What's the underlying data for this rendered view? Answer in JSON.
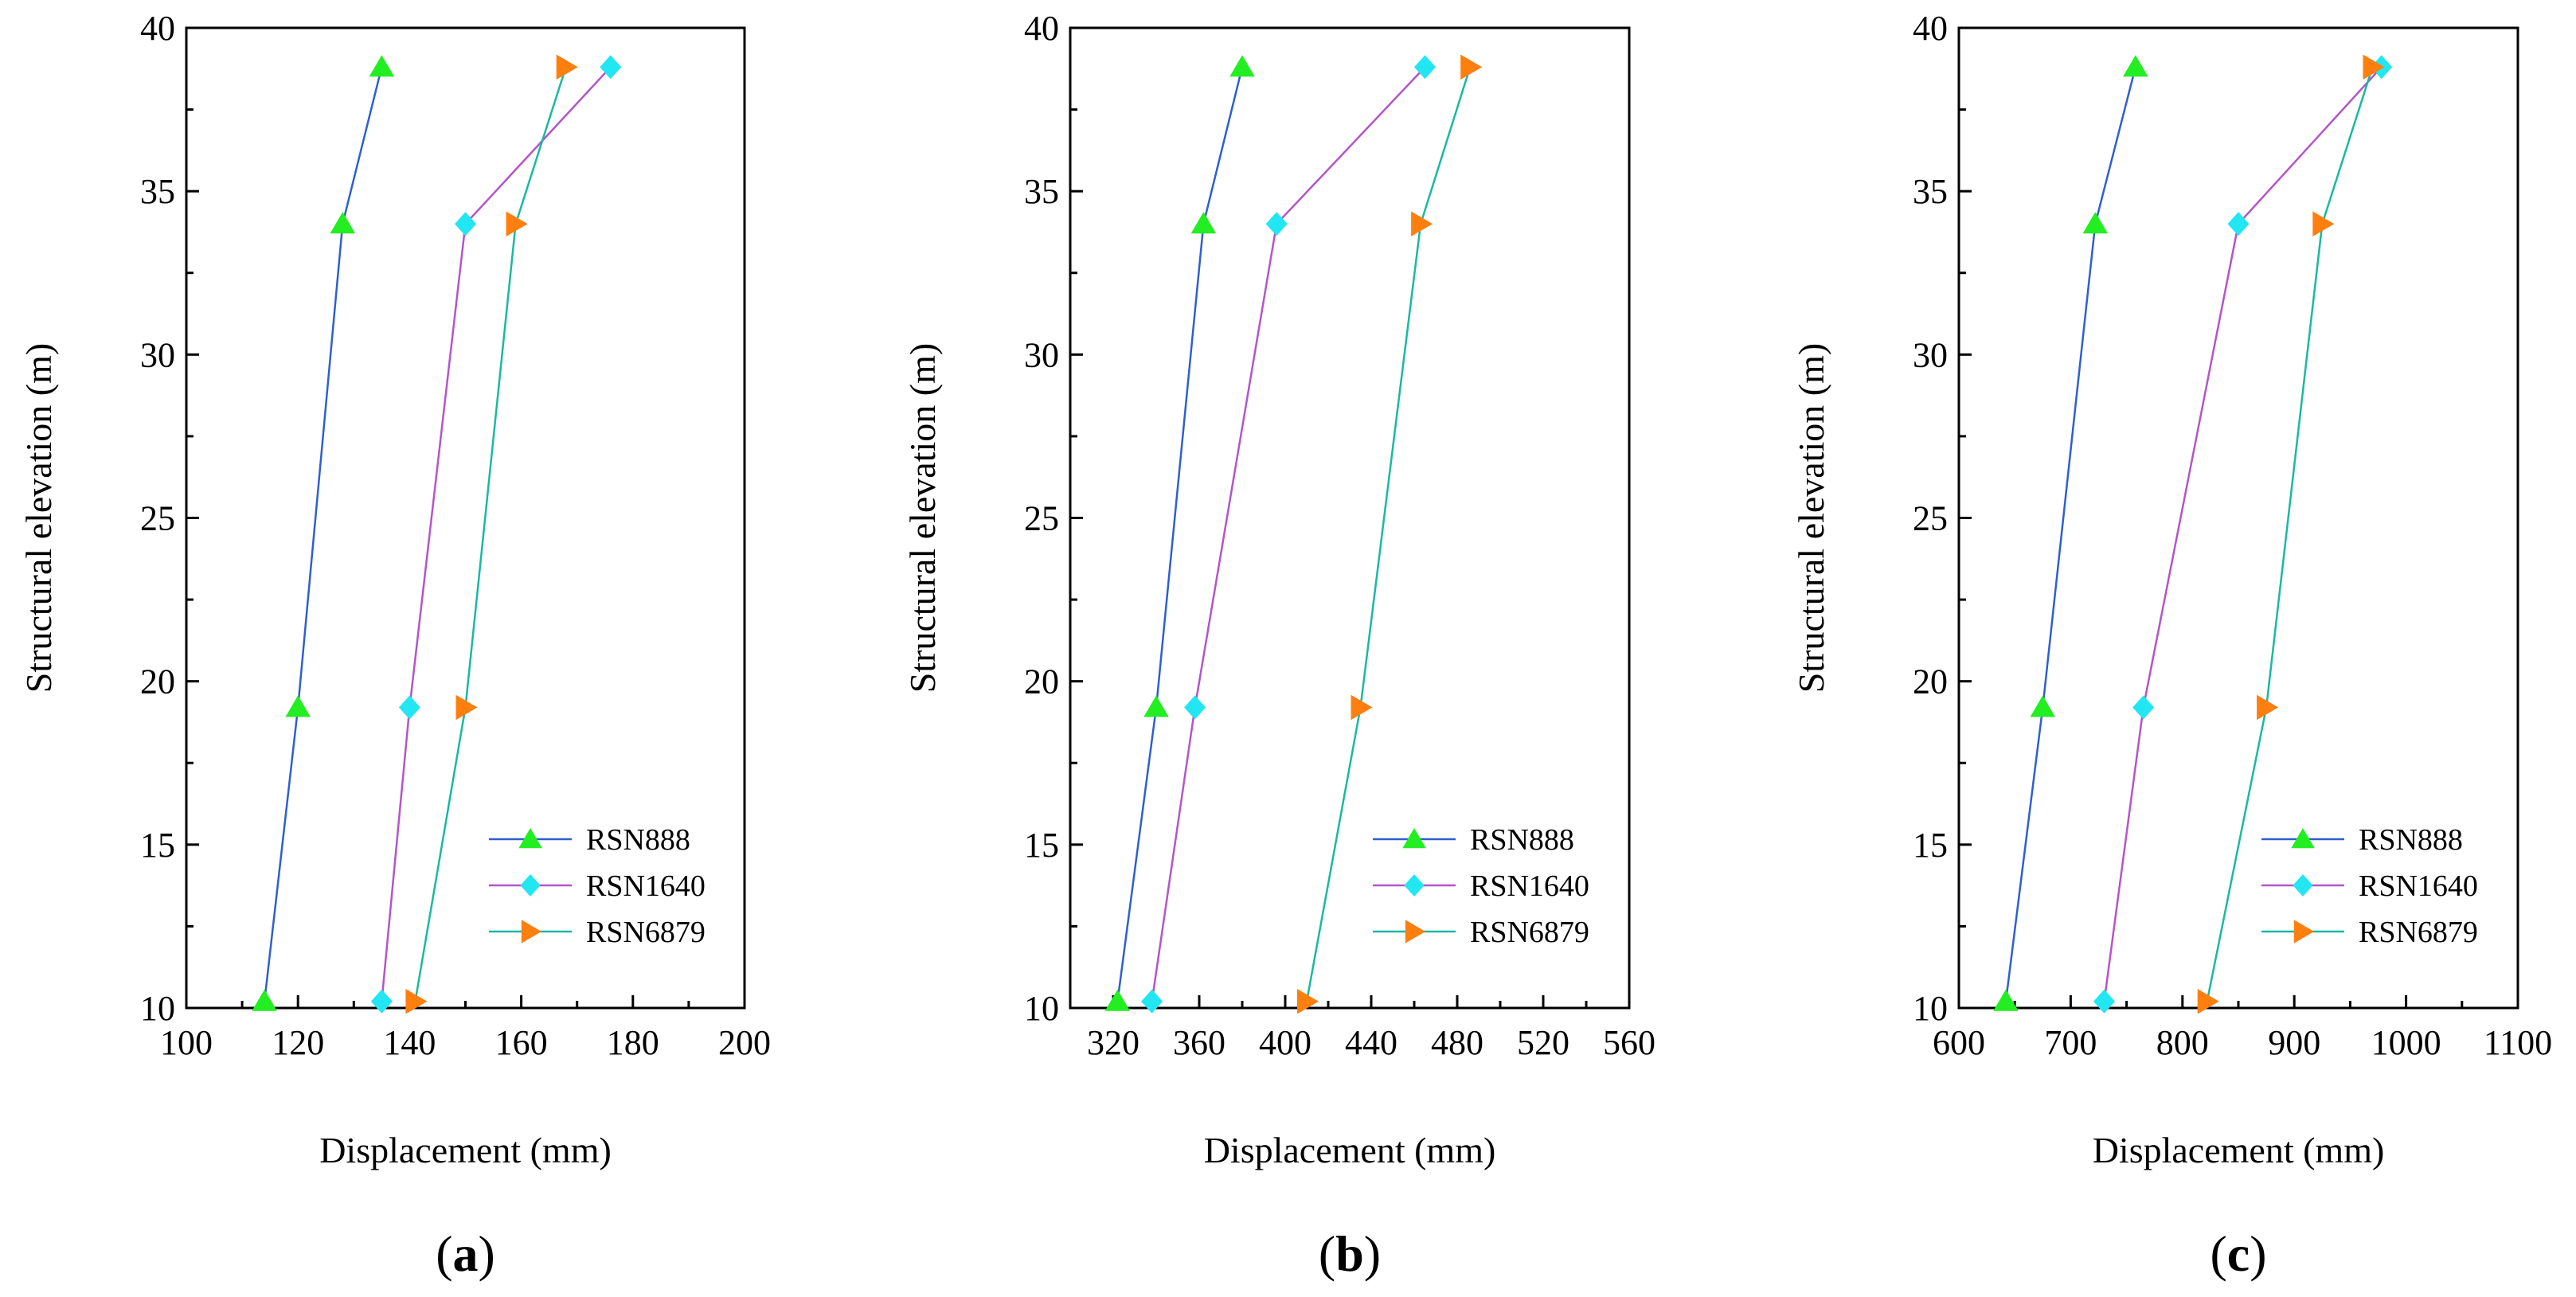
{
  "chart_data": [
    {
      "type": "line",
      "panel_label": "a",
      "xlabel": "Displacement (mm)",
      "ylabel": "Structural elevation (m)",
      "xlim": [
        100,
        200
      ],
      "xticks": [
        100,
        120,
        140,
        160,
        180,
        200
      ],
      "ylim": [
        10,
        40
      ],
      "yticks": [
        10,
        15,
        20,
        25,
        30,
        35,
        40
      ],
      "legend_position": "bottom-right",
      "y": [
        10.2,
        19.2,
        34.0,
        38.8
      ],
      "series": [
        {
          "name": "RSN888",
          "line_color": "#2f5fd0",
          "marker_color": "#22ee22",
          "marker": "triangle-up",
          "values": [
            114,
            120,
            128,
            135
          ]
        },
        {
          "name": "RSN1640",
          "line_color": "#b455c8",
          "marker_color": "#22e6f2",
          "marker": "diamond",
          "values": [
            135,
            140,
            150,
            176
          ]
        },
        {
          "name": "RSN6879",
          "line_color": "#1ab8a4",
          "marker_color": "#ff7f0e",
          "marker": "triangle-right",
          "values": [
            141,
            150,
            159,
            168
          ]
        }
      ]
    },
    {
      "type": "line",
      "panel_label": "b",
      "xlabel": "Displacement (mm)",
      "ylabel": "Structural elevation (m)",
      "xlim": [
        300,
        560
      ],
      "xticks": [
        320,
        360,
        400,
        440,
        480,
        520,
        560
      ],
      "ylim": [
        10,
        40
      ],
      "yticks": [
        10,
        15,
        20,
        25,
        30,
        35,
        40
      ],
      "legend_position": "bottom-right",
      "y": [
        10.2,
        19.2,
        34.0,
        38.8
      ],
      "series": [
        {
          "name": "RSN888",
          "line_color": "#2f5fd0",
          "marker_color": "#22ee22",
          "marker": "triangle-up",
          "values": [
            322,
            340,
            362,
            380
          ]
        },
        {
          "name": "RSN1640",
          "line_color": "#b455c8",
          "marker_color": "#22e6f2",
          "marker": "diamond",
          "values": [
            338,
            358,
            396,
            465
          ]
        },
        {
          "name": "RSN6879",
          "line_color": "#1ab8a4",
          "marker_color": "#ff7f0e",
          "marker": "triangle-right",
          "values": [
            410,
            435,
            463,
            486
          ]
        }
      ]
    },
    {
      "type": "line",
      "panel_label": "c",
      "xlabel": "Displacement (mm)",
      "ylabel": "Structural elevation (m)",
      "xlim": [
        600,
        1100
      ],
      "xticks": [
        600,
        700,
        800,
        900,
        1000,
        1100
      ],
      "ylim": [
        10,
        40
      ],
      "yticks": [
        10,
        15,
        20,
        25,
        30,
        35,
        40
      ],
      "legend_position": "bottom-right",
      "y": [
        10.2,
        19.2,
        34.0,
        38.8
      ],
      "series": [
        {
          "name": "RSN888",
          "line_color": "#2f5fd0",
          "marker_color": "#22ee22",
          "marker": "triangle-up",
          "values": [
            642,
            675,
            722,
            758
          ]
        },
        {
          "name": "RSN1640",
          "line_color": "#b455c8",
          "marker_color": "#22e6f2",
          "marker": "diamond",
          "values": [
            730,
            765,
            850,
            978
          ]
        },
        {
          "name": "RSN6879",
          "line_color": "#1ab8a4",
          "marker_color": "#ff7f0e",
          "marker": "triangle-right",
          "values": [
            822,
            875,
            925,
            970
          ]
        }
      ]
    }
  ]
}
